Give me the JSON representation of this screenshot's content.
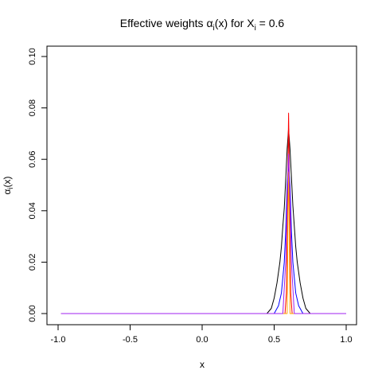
{
  "chart_data": {
    "type": "line",
    "title": {
      "prefix": "Effective weights ",
      "alpha": "α",
      "alpha_sub": "i",
      "middle": "(x) for X",
      "x_sub": "i",
      "suffix": " = 0.6"
    },
    "xlabel": "x",
    "ylabel": {
      "alpha": "α",
      "sub": "i",
      "rest": "(x)"
    },
    "xlim": [
      -1.0,
      1.0
    ],
    "ylim": [
      0.0,
      0.1
    ],
    "x_ticks": [
      "-1.0",
      "-0.5",
      "0.0",
      "0.5",
      "1.0"
    ],
    "y_ticks": [
      "0.00",
      "0.02",
      "0.04",
      "0.06",
      "0.08",
      "0.10"
    ],
    "grid": false,
    "legend": "none",
    "series": [
      {
        "color": "#000000",
        "x": [
          -0.98,
          0.45,
          0.48,
          0.5,
          0.52,
          0.54,
          0.55,
          0.56,
          0.57,
          0.58,
          0.59,
          0.6,
          0.61,
          0.62,
          0.63,
          0.64,
          0.65,
          0.66,
          0.68,
          0.7,
          0.72,
          0.75,
          1.0
        ],
        "y": [
          0.0,
          0.0,
          0.002,
          0.006,
          0.012,
          0.02,
          0.026,
          0.034,
          0.041,
          0.052,
          0.064,
          0.072,
          0.064,
          0.053,
          0.042,
          0.034,
          0.026,
          0.02,
          0.012,
          0.006,
          0.002,
          0.0,
          0.0
        ]
      },
      {
        "color": "#0000ff",
        "x": [
          -0.98,
          0.5,
          0.53,
          0.55,
          0.57,
          0.58,
          0.59,
          0.6,
          0.61,
          0.62,
          0.63,
          0.65,
          0.67,
          0.7,
          1.0
        ],
        "y": [
          0.0,
          0.0,
          0.003,
          0.008,
          0.02,
          0.032,
          0.05,
          0.058,
          0.05,
          0.032,
          0.02,
          0.008,
          0.003,
          0.0,
          0.0
        ]
      },
      {
        "color": "#ff0000",
        "x": [
          -0.98,
          0.575,
          0.585,
          0.592,
          0.598,
          0.6,
          0.602,
          0.608,
          0.615,
          0.625,
          1.0
        ],
        "y": [
          0.0,
          0.0,
          0.008,
          0.035,
          0.068,
          0.078,
          0.07,
          0.035,
          0.008,
          0.0,
          0.0
        ]
      },
      {
        "color": "#ffa500",
        "x": [
          -0.98,
          0.59,
          0.596,
          0.6,
          0.604,
          0.61,
          1.0
        ],
        "y": [
          0.0,
          0.0,
          0.04,
          0.055,
          0.04,
          0.0,
          0.0
        ]
      },
      {
        "color": "#a020f0",
        "x": [
          -0.98,
          0.56,
          0.58,
          0.59,
          0.6,
          0.61,
          0.62,
          0.64,
          1.0
        ],
        "y": [
          0.0,
          0.0,
          0.02,
          0.045,
          0.062,
          0.045,
          0.02,
          0.0,
          0.0
        ]
      }
    ]
  }
}
